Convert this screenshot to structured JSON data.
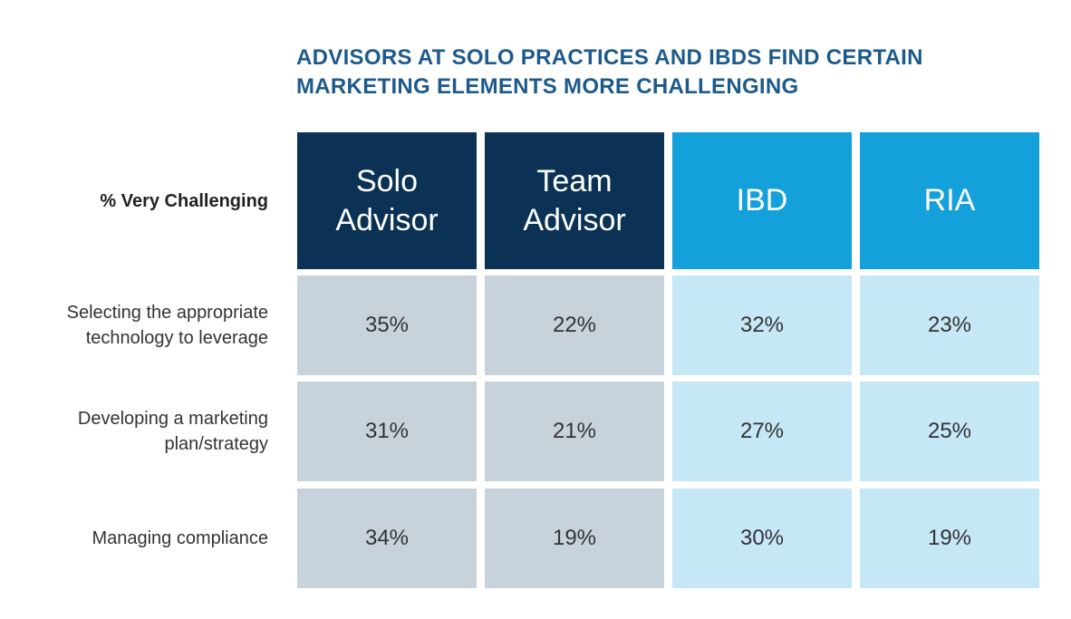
{
  "title_line1": "ADVISORS AT SOLO PRACTICES AND IBDS FIND CERTAIN",
  "title_line2": "MARKETING ELEMENTS MORE CHALLENGING",
  "colors": {
    "title": "#1d5a8c",
    "header_dark": "#0b3254",
    "header_light": "#14a0da",
    "cell_grey": "#c8d2da",
    "cell_light": "#c6e7f6"
  },
  "chart_data": {
    "type": "table",
    "title": "ADVISORS AT SOLO PRACTICES AND IBDS FIND CERTAIN MARKETING ELEMENTS MORE CHALLENGING",
    "row_header": "% Very Challenging",
    "columns": [
      "Solo\nAdvisor",
      "Team\nAdvisor",
      "IBD",
      "RIA"
    ],
    "rows": [
      {
        "label": "Selecting the appropriate\ntechnology to leverage",
        "values": [
          "35%",
          "22%",
          "32%",
          "23%"
        ]
      },
      {
        "label": "Developing a marketing\nplan/strategy",
        "values": [
          "31%",
          "21%",
          "27%",
          "25%"
        ]
      },
      {
        "label": "Managing compliance",
        "values": [
          "34%",
          "19%",
          "30%",
          "19%"
        ]
      }
    ]
  }
}
